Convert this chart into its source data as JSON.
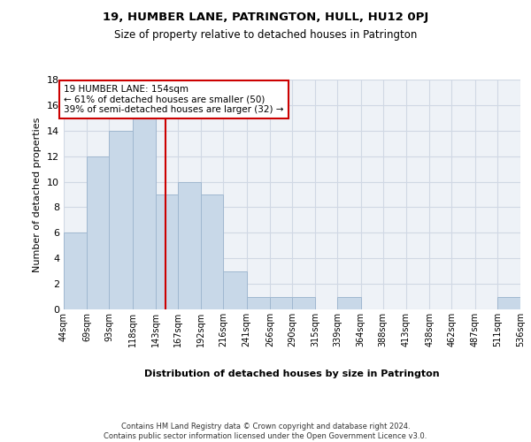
{
  "title": "19, HUMBER LANE, PATRINGTON, HULL, HU12 0PJ",
  "subtitle": "Size of property relative to detached houses in Patrington",
  "xlabel": "Distribution of detached houses by size in Patrington",
  "ylabel": "Number of detached properties",
  "bar_color": "#c8d8e8",
  "bar_edge_color": "#a0b8d0",
  "background_color": "#eef2f7",
  "grid_color": "#d0d8e4",
  "annotation_text": "19 HUMBER LANE: 154sqm\n← 61% of detached houses are smaller (50)\n39% of semi-detached houses are larger (32) →",
  "vline_x": 154,
  "vline_color": "#cc0000",
  "annotation_box_color": "#ffffff",
  "annotation_box_edge": "#cc0000",
  "footer": "Contains HM Land Registry data © Crown copyright and database right 2024.\nContains public sector information licensed under the Open Government Licence v3.0.",
  "bin_edges": [
    44,
    69,
    93,
    118,
    143,
    167,
    192,
    216,
    241,
    266,
    290,
    315,
    339,
    364,
    388,
    413,
    438,
    462,
    487,
    511,
    536
  ],
  "bin_labels": [
    "44sqm",
    "69sqm",
    "93sqm",
    "118sqm",
    "143sqm",
    "167sqm",
    "192sqm",
    "216sqm",
    "241sqm",
    "266sqm",
    "290sqm",
    "315sqm",
    "339sqm",
    "364sqm",
    "388sqm",
    "413sqm",
    "438sqm",
    "462sqm",
    "487sqm",
    "511sqm",
    "536sqm"
  ],
  "counts": [
    6,
    12,
    14,
    15,
    9,
    10,
    9,
    3,
    1,
    1,
    1,
    0,
    1,
    0,
    0,
    0,
    0,
    0,
    0,
    1
  ],
  "ylim": [
    0,
    18
  ],
  "yticks": [
    0,
    2,
    4,
    6,
    8,
    10,
    12,
    14,
    16,
    18
  ]
}
